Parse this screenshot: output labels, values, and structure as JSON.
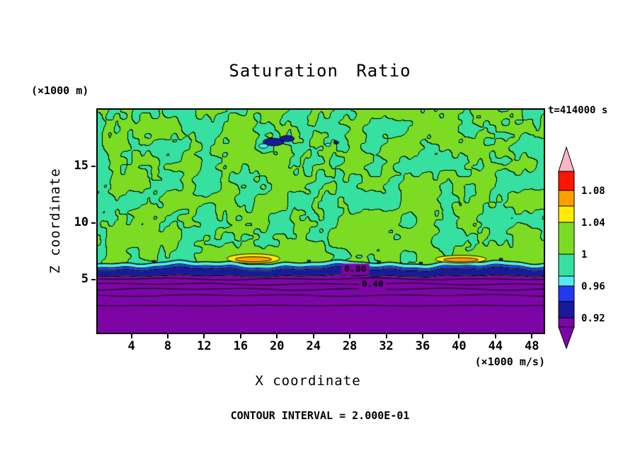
{
  "chart_data": {
    "type": "heatmap",
    "title": "Saturation Ratio",
    "xlabel": "X coordinate",
    "ylabel": "Z coordinate",
    "x_unit_label": "(×1000 m/s)",
    "y_unit_label": "(×1000 m)",
    "time_label": "t=414000 s",
    "contour_interval_label": "CONTOUR INTERVAL = 2.000E-01",
    "contour_interval": "2.000E-01",
    "xlim": [
      0.3,
      49.3
    ],
    "ylim": [
      0.3,
      20.0
    ],
    "x_ticks": [
      4,
      8,
      12,
      16,
      20,
      24,
      28,
      32,
      36,
      40,
      44,
      48
    ],
    "y_ticks": [
      5,
      10,
      15
    ],
    "grid": false,
    "noise_seed": 11,
    "colors": {
      "background_green": "#7bdc23",
      "patch_teal": "#35e0a1",
      "cyan": "#55e8f0",
      "blue": "#2438f0",
      "navy": "#19199b",
      "purple": "#7d05a5",
      "yellow": "#ffec00",
      "orange": "#ffa000",
      "red": "#fb1400",
      "pink": "#f5b6c6",
      "contour": "#000000"
    },
    "bands": {
      "cyan_top": 6.45,
      "blue_top": 6.2,
      "navy_top": 5.95,
      "purple_top": 5.35
    },
    "sub_contours_z": [
      5.05,
      4.6,
      4.15,
      3.6,
      2.7
    ],
    "contour_labels": [
      {
        "text": "0.80",
        "x": 28.6,
        "z": 5.9
      },
      {
        "text": "0.40",
        "x": 30.5,
        "z": 4.55
      }
    ],
    "warm_spots": [
      {
        "x": 17.4,
        "z": 6.85,
        "rx": 2.9,
        "rz": 0.42,
        "core_rx": 2.0,
        "core_rz": 0.22
      },
      {
        "x": 40.2,
        "z": 6.8,
        "rx": 2.8,
        "rz": 0.34,
        "core_rx": 1.9,
        "core_rz": 0.18
      }
    ],
    "cold_blobs": [
      {
        "x": 19.6,
        "z": 17.15,
        "rx": 1.15,
        "rz": 0.33,
        "color": "navy"
      },
      {
        "x": 21.1,
        "z": 17.45,
        "rx": 0.8,
        "rz": 0.26,
        "color": "navy"
      },
      {
        "x": 18.5,
        "z": 16.8,
        "rx": 0.5,
        "rz": 0.2,
        "color": "cyan"
      },
      {
        "x": 25.6,
        "z": 16.9,
        "rx": 0.3,
        "rz": 0.14,
        "color": "cyan"
      },
      {
        "x": 26.5,
        "z": 17.1,
        "rx": 0.28,
        "rz": 0.13,
        "color": "navy"
      }
    ],
    "boundary_specks_x": [
      6.5,
      23.5,
      31.2,
      35.8,
      44.6
    ],
    "colorbar": {
      "over_color": "#f5b6c6",
      "under_color": "#7d05a5",
      "stem_h": 13,
      "labels": [
        "1.08",
        "1.04",
        "1",
        "0.96",
        "0.92"
      ],
      "segments": [
        {
          "color": "#fb1400",
          "h": 27,
          "label": "1.08"
        },
        {
          "color": "#ffa000",
          "h": 22
        },
        {
          "color": "#ffec00",
          "h": 23,
          "label": "1.04"
        },
        {
          "color": "#7bdc23",
          "h": 45,
          "label": "1"
        },
        {
          "color": "#35e0a1",
          "h": 31
        },
        {
          "color": "#55e8f0",
          "h": 14,
          "label": "0.96"
        },
        {
          "color": "#2438f0",
          "h": 22
        },
        {
          "color": "#19199b",
          "h": 23,
          "label": "0.92"
        }
      ]
    }
  }
}
